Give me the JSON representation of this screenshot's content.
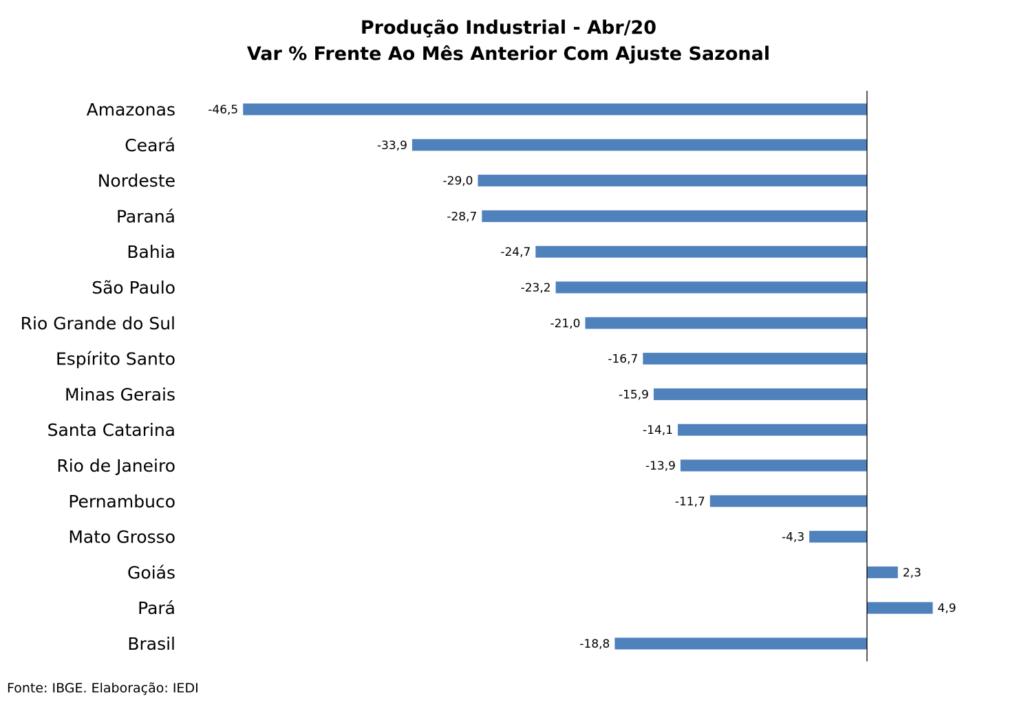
{
  "chart_data": {
    "type": "bar",
    "orientation": "horizontal",
    "title": "Produção Industrial - Abr/20",
    "subtitle": "Var % Frente Ao Mês Anterior Com Ajuste Sazonal",
    "categories": [
      "Amazonas",
      "Ceará",
      "Nordeste",
      "Paraná",
      "Bahia",
      "São Paulo",
      "Rio Grande do Sul",
      "Espírito Santo",
      "Minas Gerais",
      "Santa Catarina",
      "Rio de Janeiro",
      "Pernambuco",
      "Mato Grosso",
      "Goiás",
      "Pará",
      "Brasil"
    ],
    "values": [
      -46.5,
      -33.9,
      -29.0,
      -28.7,
      -24.7,
      -23.2,
      -21.0,
      -16.7,
      -15.9,
      -14.1,
      -13.9,
      -11.7,
      -4.3,
      2.3,
      4.9,
      -18.8
    ],
    "value_labels": [
      "-46,5",
      "-33,9",
      "-29,0",
      "-28,7",
      "-24,7",
      "-23,2",
      "-21,0",
      "-16,7",
      "-15,9",
      "-14,1",
      "-13,9",
      "-11,7",
      "-4,3",
      "2,3",
      "4,9",
      "-18,8"
    ],
    "xlim": [
      -50,
      10
    ],
    "grid": false,
    "legend": "none",
    "bar_color": "#4F81BD"
  },
  "source": "Fonte: IBGE. Elaboração: IEDI"
}
